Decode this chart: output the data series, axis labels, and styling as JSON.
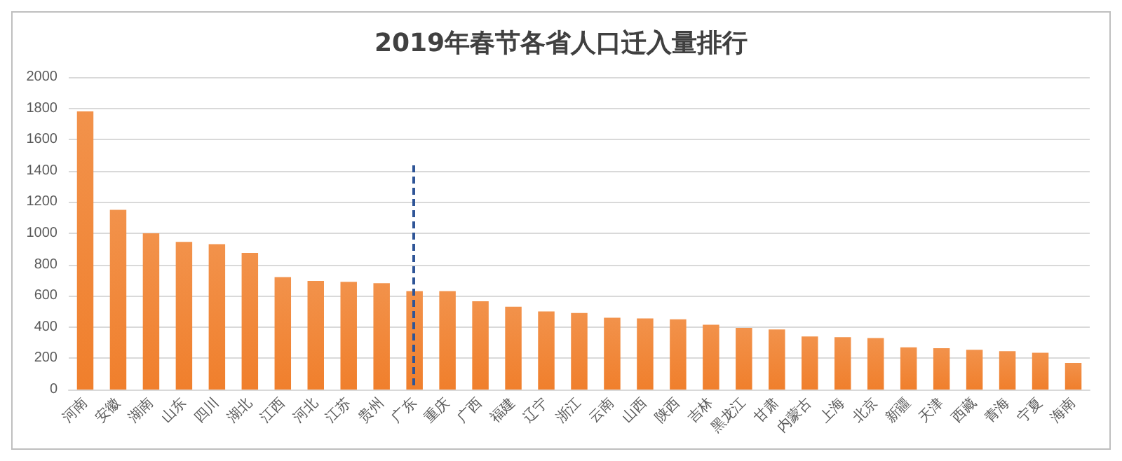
{
  "chart_data": {
    "type": "bar",
    "title": "2019年春节各省人口迁入量排行",
    "categories": [
      "河南",
      "安徽",
      "湖南",
      "山东",
      "四川",
      "湖北",
      "江西",
      "河北",
      "江苏",
      "贵州",
      "广东",
      "重庆",
      "广西",
      "福建",
      "辽宁",
      "浙江",
      "云南",
      "山西",
      "陕西",
      "吉林",
      "黑龙江",
      "甘肃",
      "内蒙古",
      "上海",
      "北京",
      "新疆",
      "天津",
      "西藏",
      "青海",
      "宁夏",
      "海南"
    ],
    "values": [
      1780,
      1150,
      1000,
      945,
      930,
      875,
      720,
      695,
      690,
      680,
      630,
      630,
      565,
      530,
      500,
      490,
      460,
      455,
      450,
      415,
      395,
      385,
      340,
      335,
      330,
      270,
      265,
      255,
      245,
      235,
      170
    ],
    "color": "#f07f2c",
    "ylim": [
      0,
      2000
    ],
    "yticks": [
      0,
      200,
      400,
      600,
      800,
      1000,
      1200,
      1400,
      1600,
      1800,
      2000
    ],
    "grid": "y"
  }
}
